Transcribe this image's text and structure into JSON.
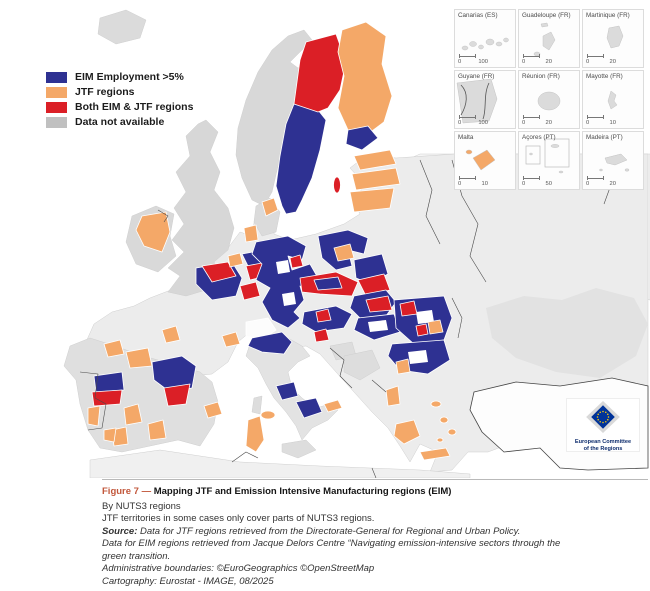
{
  "theme": {
    "blue": "#2E3192",
    "orange": "#F4A868",
    "red": "#DB1F26",
    "gray": "#C0C0C0",
    "land": "#E9E9E9",
    "land_dark": "#D8D8D8",
    "sea": "#FFFFFF"
  },
  "legend": {
    "items": [
      {
        "label": "EIM Employment >5%",
        "color": "#2E3192"
      },
      {
        "label": "JTF regions",
        "color": "#F4A868"
      },
      {
        "label": "Both EIM & JTF regions",
        "color": "#DB1F26"
      },
      {
        "label": "Data not available",
        "color": "#C0C0C0"
      }
    ]
  },
  "insets": {
    "cells": [
      {
        "label": "Canarias (ES)",
        "scale_start": "0",
        "scale_end": "100",
        "highlight": false
      },
      {
        "label": "Guadeloupe (FR)",
        "scale_start": "0",
        "scale_end": "20",
        "highlight": false
      },
      {
        "label": "Martinique (FR)",
        "scale_start": "0",
        "scale_end": "20",
        "highlight": false
      },
      {
        "label": "Guyane (FR)",
        "scale_start": "0",
        "scale_end": "100",
        "highlight": false
      },
      {
        "label": "Réunion (FR)",
        "scale_start": "0",
        "scale_end": "20",
        "highlight": false
      },
      {
        "label": "Mayotte (FR)",
        "scale_start": "0",
        "scale_end": "10",
        "highlight": false
      },
      {
        "label": "Malta",
        "scale_start": "0",
        "scale_end": "10",
        "highlight": true
      },
      {
        "label": "Açores (PT)",
        "scale_start": "0",
        "scale_end": "50",
        "highlight": false
      },
      {
        "label": "Madeira (PT)",
        "scale_start": "0",
        "scale_end": "20",
        "highlight": false
      }
    ]
  },
  "logo": {
    "line1": "European Committee",
    "line2": "of the Regions"
  },
  "caption": {
    "figure_label": "Figure 7 —",
    "title": "Mapping JTF and Emission Intensive Manufacturing regions (EIM)",
    "subtitle": "By NUTS3 regions",
    "note": "JTF territories in some cases only cover parts of NUTS3 regions.",
    "source_label": "Source:",
    "source_jtf": "Data for JTF regions retrieved from the Directorate-General for Regional and Urban Policy.",
    "source_eim": "Data for EIM regions retrieved from Jacque Delors Centre “Navigating emission-intensive sectors through the green transition.",
    "boundaries": "Administrative boundaries: ©EuroGeographics ©OpenStreetMap",
    "cartography": "Cartography: Eurostat - IMAGE, 08/2025"
  },
  "map": {
    "summary": [
      {
        "area": "Northern Sweden",
        "class": "Both EIM & JTF"
      },
      {
        "area": "Central-South Sweden, South Finland",
        "class": "EIM Employment >5%"
      },
      {
        "area": "Finland, Baltic states, Ireland midlands, Greece islands, Sardinia, Malta, Cyprus",
        "class": "JTF regions"
      },
      {
        "area": "Germany, Poland, Czechia, Austria, Slovakia, Romania, Bulgaria, NE Spain, N Italy",
        "class": "EIM Employment >5% with Both-EIM&JTF pockets"
      },
      {
        "area": "United Kingdom, Norway, Switzerland (non-EU)",
        "class": "Data not available"
      }
    ]
  }
}
